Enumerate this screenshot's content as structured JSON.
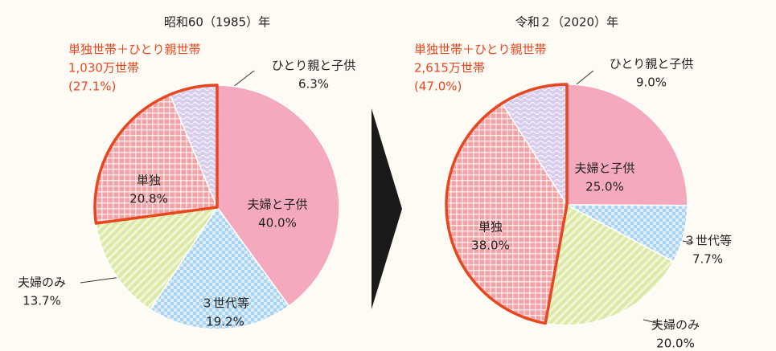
{
  "chart_data": [
    {
      "type": "pie",
      "title": "昭和60（1985）年",
      "categories": [
        "夫婦と子供",
        "３世代等",
        "夫婦のみ",
        "単独",
        "ひとり親と子供"
      ],
      "values": [
        40.0,
        19.2,
        13.7,
        20.8,
        6.3
      ],
      "value_labels": [
        "40.0%",
        "19.2%",
        "13.7%",
        "20.8%",
        "6.3%"
      ],
      "colors": [
        "#f5a9bc",
        "#a8d2f0",
        "#dbe9a4",
        "#f4a2a6",
        "#d8cdea"
      ],
      "annotation": [
        "単独世帯＋ひとり親世帯",
        "1,030万世帯",
        "(27.1%)"
      ],
      "annotation_color": "#e8461e"
    },
    {
      "type": "pie",
      "title": "令和２（2020）年",
      "categories": [
        "夫婦と子供",
        "３世代等",
        "夫婦のみ",
        "単独",
        "ひとり親と子供"
      ],
      "values": [
        25.0,
        7.7,
        20.0,
        38.0,
        9.0
      ],
      "value_labels": [
        "25.0%",
        "7.7%",
        "20.0%",
        "38.0%",
        "9.0%"
      ],
      "colors": [
        "#f5a9bc",
        "#a8d2f0",
        "#dbe9a4",
        "#f4a2a6",
        "#d8cdea"
      ],
      "annotation": [
        "単独世帯＋ひとり親世帯",
        "2,615万世帯",
        "(47.0%)"
      ],
      "annotation_color": "#e8461e"
    }
  ]
}
